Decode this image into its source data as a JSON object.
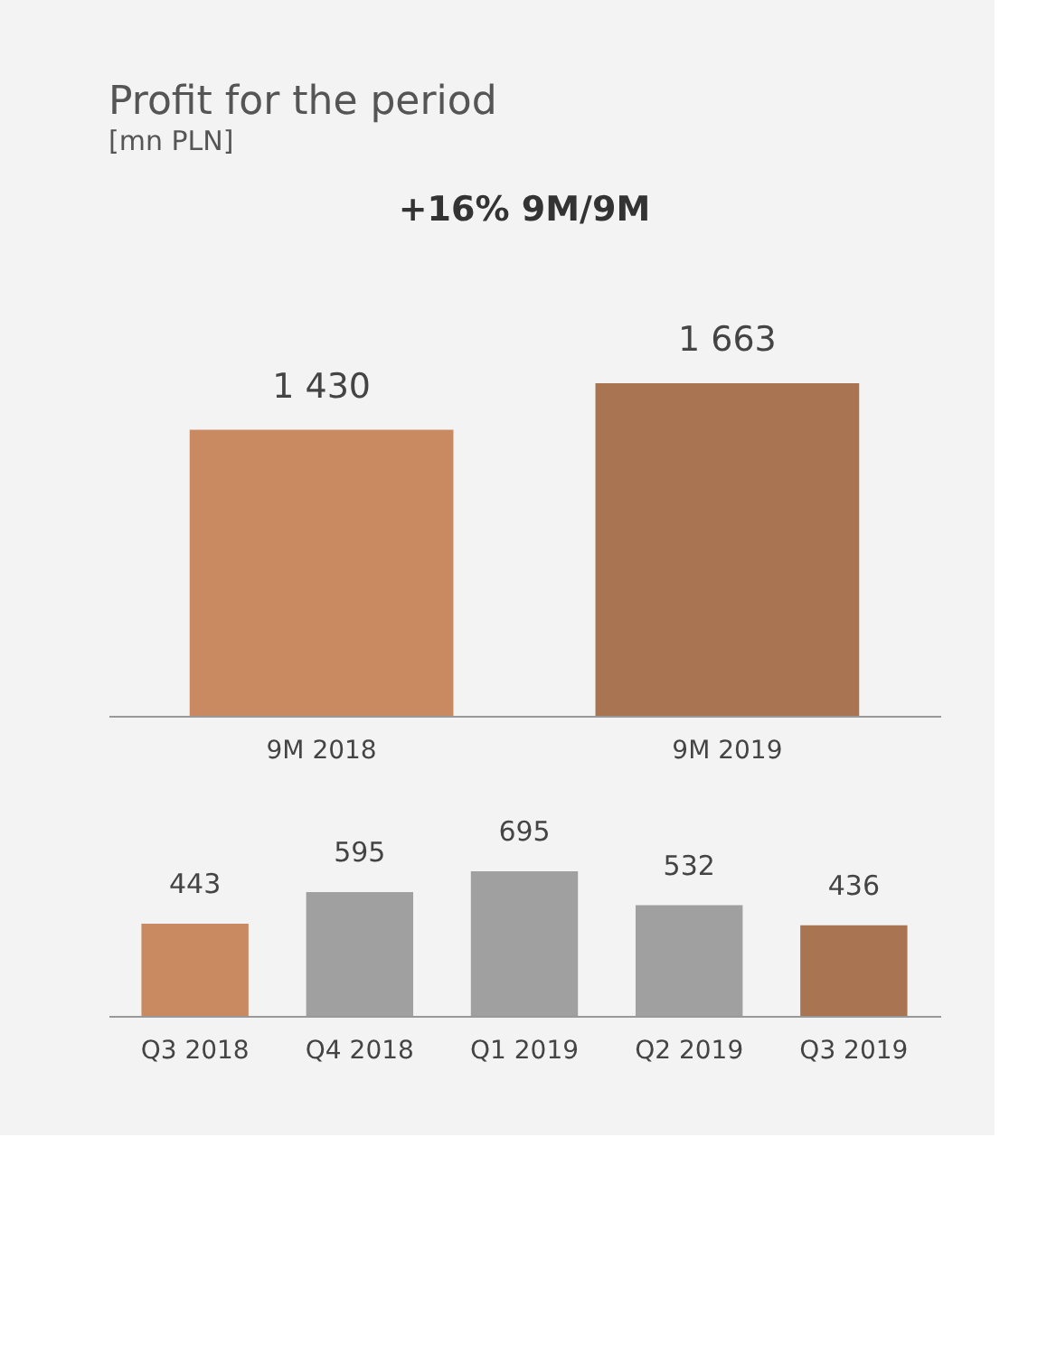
{
  "chart_data": [
    {
      "type": "bar",
      "title": "Profit for the period",
      "subtitle": "[mn PLN]",
      "annotations": [
        "+16% 9M/9M"
      ],
      "categories": [
        "9M 2018",
        "9M 2019"
      ],
      "values": [
        1430,
        1663
      ],
      "value_labels": [
        "1 430",
        "1 663"
      ],
      "colors": [
        "#c98a62",
        "#a87452"
      ]
    },
    {
      "type": "bar",
      "categories": [
        "Q3 2018",
        "Q4 2018",
        "Q1 2019",
        "Q2 2019",
        "Q3 2019"
      ],
      "values": [
        443,
        595,
        695,
        532,
        436
      ],
      "value_labels": [
        "443",
        "595",
        "695",
        "532",
        "436"
      ],
      "colors": [
        "#c98a62",
        "#a0a0a0",
        "#a0a0a0",
        "#a0a0a0",
        "#a87452"
      ]
    }
  ]
}
